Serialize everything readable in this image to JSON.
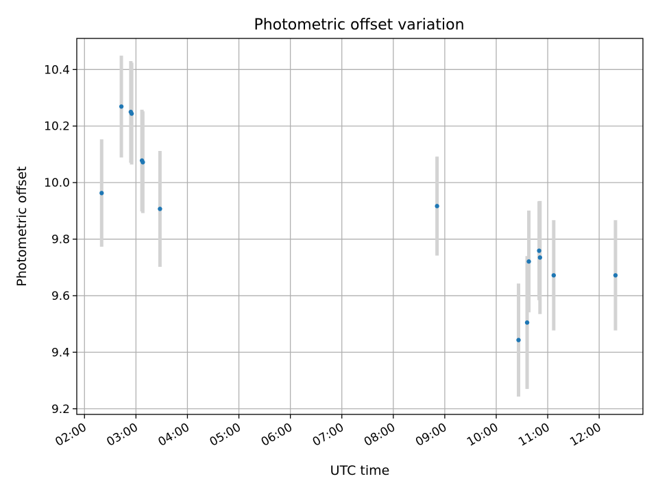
{
  "chart_data": {
    "type": "scatter",
    "title": "Photometric offset variation",
    "xlabel": "UTC time",
    "ylabel": "Photometric offset",
    "xlim": [
      "01:51",
      "12:51"
    ],
    "ylim": [
      9.18,
      10.51
    ],
    "x_ticks": [
      "02:00",
      "03:00",
      "04:00",
      "05:00",
      "06:00",
      "07:00",
      "08:00",
      "09:00",
      "10:00",
      "11:00",
      "12:00"
    ],
    "y_ticks": [
      9.2,
      9.4,
      9.6,
      9.8,
      10.0,
      10.2,
      10.4
    ],
    "y_tick_labels": [
      "9.2",
      "9.4",
      "9.6",
      "9.8",
      "10.0",
      "10.2",
      "10.4"
    ],
    "grid": true,
    "colors": {
      "marker": "#1f77b4",
      "errorbar": "#d3d3d3",
      "grid": "#b0b0b0"
    },
    "points": [
      {
        "x": "02:20",
        "y": 9.963,
        "err": 0.19
      },
      {
        "x": "02:43",
        "y": 10.269,
        "err": 0.18
      },
      {
        "x": "02:54",
        "y": 10.25,
        "err": 0.18
      },
      {
        "x": "02:55",
        "y": 10.244,
        "err": 0.18
      },
      {
        "x": "03:07",
        "y": 10.078,
        "err": 0.18
      },
      {
        "x": "03:08",
        "y": 10.072,
        "err": 0.18
      },
      {
        "x": "03:28",
        "y": 9.907,
        "err": 0.205
      },
      {
        "x": "08:51",
        "y": 9.917,
        "err": 0.175
      },
      {
        "x": "10:26",
        "y": 9.443,
        "err": 0.2
      },
      {
        "x": "10:36",
        "y": 9.505,
        "err": 0.235
      },
      {
        "x": "10:38",
        "y": 9.721,
        "err": 0.18
      },
      {
        "x": "10:50",
        "y": 9.759,
        "err": 0.175
      },
      {
        "x": "10:51",
        "y": 9.735,
        "err": 0.2
      },
      {
        "x": "11:07",
        "y": 9.672,
        "err": 0.195
      },
      {
        "x": "12:19",
        "y": 9.672,
        "err": 0.195
      }
    ]
  }
}
